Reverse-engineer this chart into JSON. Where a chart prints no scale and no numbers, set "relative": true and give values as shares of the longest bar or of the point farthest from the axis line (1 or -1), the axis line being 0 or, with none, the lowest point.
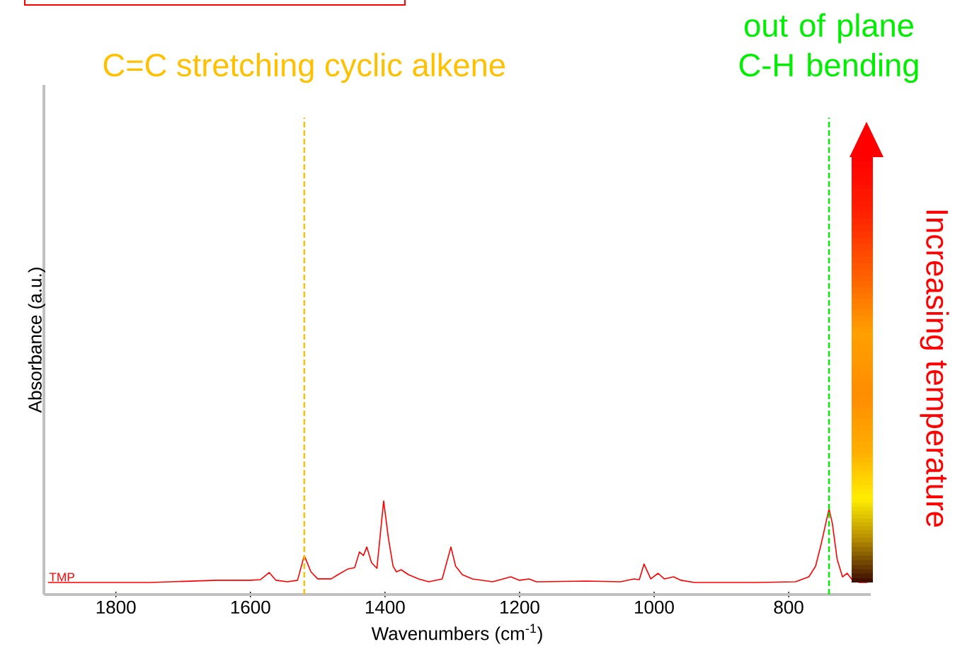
{
  "chart_data": {
    "type": "line",
    "relative": true,
    "xlabel": "Wavenumbers (cm$^{-1}$)",
    "ylabel": "Absorbance (a.u.)",
    "xlim": [
      1907,
      678
    ],
    "xticks": [
      1800,
      1600,
      1400,
      1200,
      1000,
      800
    ],
    "series": [
      {
        "name": "TMP",
        "color": "#ff0000",
        "x": [
          1901,
          1750,
          1650,
          1600,
          1585,
          1572,
          1562,
          1545,
          1530,
          1520,
          1510,
          1500,
          1480,
          1470,
          1455,
          1445,
          1438,
          1432,
          1427,
          1420,
          1412,
          1402,
          1395,
          1388,
          1383,
          1376,
          1365,
          1350,
          1335,
          1315,
          1302,
          1295,
          1285,
          1270,
          1240,
          1213,
          1200,
          1186,
          1175,
          1100,
          1050,
          1030,
          1022,
          1015,
          1005,
          994,
          985,
          971,
          960,
          940,
          850,
          790,
          770,
          760,
          752,
          740,
          735,
          728,
          720,
          713,
          705,
          695,
          683
        ],
        "values": [
          0.129,
          0.129,
          0.152,
          0.152,
          0.159,
          0.235,
          0.152,
          0.136,
          0.152,
          0.417,
          0.242,
          0.167,
          0.167,
          0.212,
          0.273,
          0.288,
          0.455,
          0.417,
          0.508,
          0.341,
          0.28,
          1.0,
          0.606,
          0.303,
          0.242,
          0.265,
          0.212,
          0.167,
          0.136,
          0.167,
          0.508,
          0.303,
          0.212,
          0.167,
          0.136,
          0.189,
          0.152,
          0.167,
          0.136,
          0.144,
          0.136,
          0.167,
          0.159,
          0.326,
          0.167,
          0.227,
          0.167,
          0.189,
          0.152,
          0.129,
          0.129,
          0.136,
          0.189,
          0.303,
          0.53,
          0.917,
          0.758,
          0.379,
          0.189,
          0.227,
          0.152,
          0.129,
          0.129
        ]
      }
    ],
    "ref_lines": [
      {
        "axis": "x",
        "value": 1520,
        "label": "C=C stretching cyclic alkene",
        "color": "#ffc000",
        "line_style": "dashed"
      },
      {
        "axis": "x",
        "value": 740,
        "label": "out of plane C-H bending",
        "color": "#00ee00",
        "line_style": "dashed"
      }
    ],
    "annotations": [
      "Increasing temperature"
    ]
  }
}
